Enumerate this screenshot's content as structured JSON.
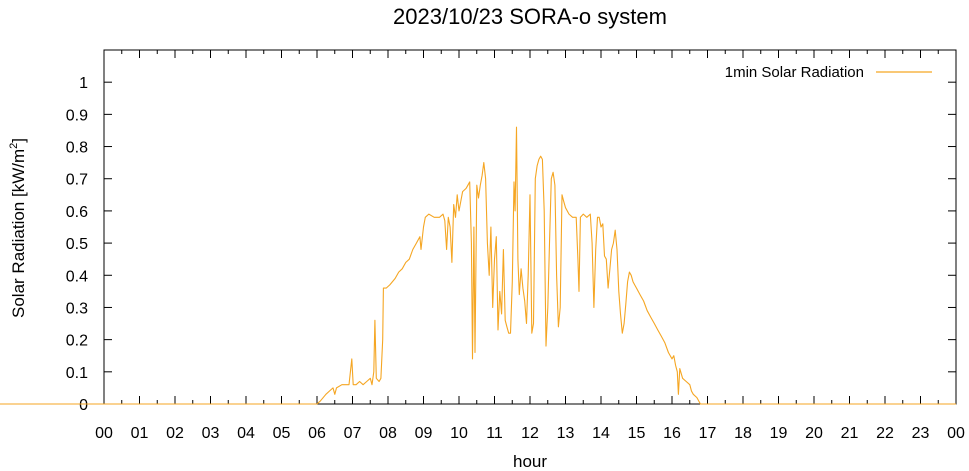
{
  "chart_data": {
    "type": "line",
    "title": "2023/10/23 SORA-o system",
    "xlabel": "hour",
    "ylabel": "Solar Radiation [kW/m",
    "ylabel_sup": "2",
    "ylabel_close": "]",
    "xlim": [
      0,
      24
    ],
    "ylim": [
      0,
      1.1
    ],
    "x_ticks": [
      "00",
      "01",
      "02",
      "03",
      "04",
      "05",
      "06",
      "07",
      "08",
      "09",
      "10",
      "11",
      "12",
      "13",
      "14",
      "15",
      "16",
      "17",
      "18",
      "19",
      "20",
      "21",
      "22",
      "23",
      "00"
    ],
    "y_ticks": [
      "0",
      "0.1",
      "0.2",
      "0.3",
      "0.4",
      "0.5",
      "0.6",
      "0.7",
      "0.8",
      "0.9",
      "1"
    ],
    "grid": false,
    "legend_position": "top-right",
    "series": [
      {
        "name": "1min Solar Radiation",
        "color": "#f5a623",
        "points": [
          [
            6.0,
            0.0
          ],
          [
            6.1,
            0.01
          ],
          [
            6.25,
            0.03
          ],
          [
            6.35,
            0.04
          ],
          [
            6.45,
            0.05
          ],
          [
            6.5,
            0.03
          ],
          [
            6.55,
            0.05
          ],
          [
            6.7,
            0.06
          ],
          [
            6.8,
            0.06
          ],
          [
            6.9,
            0.06
          ],
          [
            6.98,
            0.14
          ],
          [
            7.02,
            0.06
          ],
          [
            7.1,
            0.06
          ],
          [
            7.2,
            0.07
          ],
          [
            7.3,
            0.06
          ],
          [
            7.4,
            0.07
          ],
          [
            7.5,
            0.08
          ],
          [
            7.55,
            0.06
          ],
          [
            7.6,
            0.1
          ],
          [
            7.63,
            0.26
          ],
          [
            7.67,
            0.08
          ],
          [
            7.75,
            0.07
          ],
          [
            7.8,
            0.08
          ],
          [
            7.85,
            0.2
          ],
          [
            7.87,
            0.36
          ],
          [
            7.95,
            0.36
          ],
          [
            8.05,
            0.37
          ],
          [
            8.2,
            0.39
          ],
          [
            8.3,
            0.41
          ],
          [
            8.4,
            0.42
          ],
          [
            8.5,
            0.44
          ],
          [
            8.6,
            0.45
          ],
          [
            8.7,
            0.48
          ],
          [
            8.8,
            0.5
          ],
          [
            8.9,
            0.52
          ],
          [
            8.93,
            0.48
          ],
          [
            9.0,
            0.55
          ],
          [
            9.05,
            0.58
          ],
          [
            9.15,
            0.59
          ],
          [
            9.3,
            0.58
          ],
          [
            9.45,
            0.58
          ],
          [
            9.55,
            0.59
          ],
          [
            9.6,
            0.57
          ],
          [
            9.65,
            0.48
          ],
          [
            9.7,
            0.58
          ],
          [
            9.75,
            0.55
          ],
          [
            9.8,
            0.44
          ],
          [
            9.85,
            0.62
          ],
          [
            9.9,
            0.58
          ],
          [
            9.95,
            0.65
          ],
          [
            10.0,
            0.6
          ],
          [
            10.05,
            0.63
          ],
          [
            10.1,
            0.66
          ],
          [
            10.2,
            0.67
          ],
          [
            10.25,
            0.68
          ],
          [
            10.3,
            0.69
          ],
          [
            10.35,
            0.5
          ],
          [
            10.38,
            0.14
          ],
          [
            10.42,
            0.55
          ],
          [
            10.45,
            0.16
          ],
          [
            10.5,
            0.68
          ],
          [
            10.55,
            0.64
          ],
          [
            10.6,
            0.68
          ],
          [
            10.65,
            0.71
          ],
          [
            10.7,
            0.75
          ],
          [
            10.75,
            0.7
          ],
          [
            10.8,
            0.5
          ],
          [
            10.85,
            0.4
          ],
          [
            10.9,
            0.55
          ],
          [
            10.95,
            0.3
          ],
          [
            11.0,
            0.45
          ],
          [
            11.05,
            0.52
          ],
          [
            11.1,
            0.23
          ],
          [
            11.15,
            0.35
          ],
          [
            11.2,
            0.28
          ],
          [
            11.25,
            0.48
          ],
          [
            11.3,
            0.26
          ],
          [
            11.35,
            0.24
          ],
          [
            11.4,
            0.22
          ],
          [
            11.45,
            0.22
          ],
          [
            11.5,
            0.38
          ],
          [
            11.55,
            0.69
          ],
          [
            11.58,
            0.6
          ],
          [
            11.62,
            0.86
          ],
          [
            11.66,
            0.45
          ],
          [
            11.7,
            0.34
          ],
          [
            11.75,
            0.42
          ],
          [
            11.8,
            0.36
          ],
          [
            11.85,
            0.32
          ],
          [
            11.9,
            0.25
          ],
          [
            11.95,
            0.4
          ],
          [
            12.0,
            0.65
          ],
          [
            12.05,
            0.22
          ],
          [
            12.1,
            0.25
          ],
          [
            12.15,
            0.7
          ],
          [
            12.2,
            0.74
          ],
          [
            12.25,
            0.76
          ],
          [
            12.3,
            0.77
          ],
          [
            12.35,
            0.76
          ],
          [
            12.4,
            0.6
          ],
          [
            12.45,
            0.18
          ],
          [
            12.5,
            0.3
          ],
          [
            12.55,
            0.5
          ],
          [
            12.6,
            0.7
          ],
          [
            12.65,
            0.72
          ],
          [
            12.7,
            0.68
          ],
          [
            12.75,
            0.4
          ],
          [
            12.8,
            0.24
          ],
          [
            12.85,
            0.3
          ],
          [
            12.9,
            0.65
          ],
          [
            12.95,
            0.63
          ],
          [
            13.0,
            0.61
          ],
          [
            13.1,
            0.59
          ],
          [
            13.2,
            0.58
          ],
          [
            13.3,
            0.58
          ],
          [
            13.35,
            0.45
          ],
          [
            13.38,
            0.35
          ],
          [
            13.42,
            0.58
          ],
          [
            13.5,
            0.59
          ],
          [
            13.6,
            0.58
          ],
          [
            13.7,
            0.59
          ],
          [
            13.75,
            0.5
          ],
          [
            13.8,
            0.3
          ],
          [
            13.85,
            0.48
          ],
          [
            13.9,
            0.58
          ],
          [
            13.95,
            0.58
          ],
          [
            14.0,
            0.55
          ],
          [
            14.05,
            0.56
          ],
          [
            14.1,
            0.46
          ],
          [
            14.15,
            0.45
          ],
          [
            14.2,
            0.36
          ],
          [
            14.25,
            0.42
          ],
          [
            14.3,
            0.48
          ],
          [
            14.35,
            0.5
          ],
          [
            14.4,
            0.54
          ],
          [
            14.45,
            0.48
          ],
          [
            14.5,
            0.35
          ],
          [
            14.55,
            0.28
          ],
          [
            14.6,
            0.22
          ],
          [
            14.65,
            0.25
          ],
          [
            14.7,
            0.31
          ],
          [
            14.75,
            0.38
          ],
          [
            14.8,
            0.41
          ],
          [
            14.85,
            0.4
          ],
          [
            14.9,
            0.38
          ],
          [
            14.95,
            0.37
          ],
          [
            15.0,
            0.36
          ],
          [
            15.1,
            0.34
          ],
          [
            15.2,
            0.32
          ],
          [
            15.3,
            0.29
          ],
          [
            15.4,
            0.27
          ],
          [
            15.5,
            0.25
          ],
          [
            15.6,
            0.23
          ],
          [
            15.7,
            0.21
          ],
          [
            15.8,
            0.19
          ],
          [
            15.9,
            0.16
          ],
          [
            16.0,
            0.14
          ],
          [
            16.05,
            0.15
          ],
          [
            16.1,
            0.12
          ],
          [
            16.15,
            0.1
          ],
          [
            16.18,
            0.03
          ],
          [
            16.22,
            0.11
          ],
          [
            16.3,
            0.08
          ],
          [
            16.4,
            0.07
          ],
          [
            16.5,
            0.06
          ],
          [
            16.55,
            0.04
          ],
          [
            16.6,
            0.03
          ],
          [
            16.7,
            0.02
          ],
          [
            16.8,
            0.0
          ]
        ]
      }
    ]
  }
}
